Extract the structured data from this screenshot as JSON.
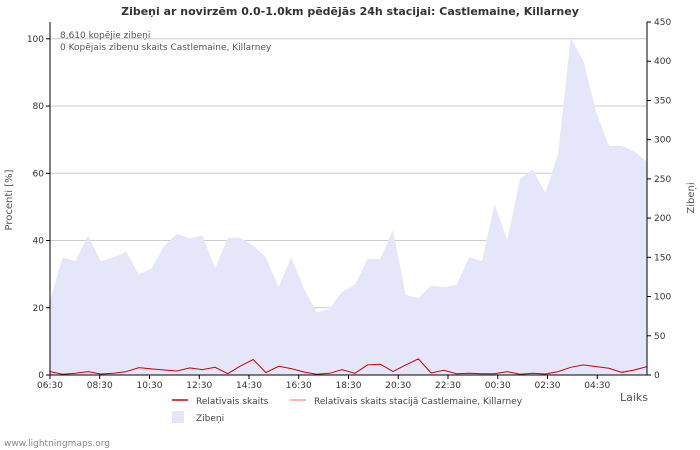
{
  "chart_data": {
    "type": "area",
    "title": "Zibeņi ar novirzēm 0.0-1.0km pēdējās 24h stacijai: Castlemaine, Killarney",
    "xlabel": "Laiks",
    "ylabel_left": "Procenti  [%]",
    "ylabel_right": "Zibeņi",
    "ylim_left": [
      0,
      105
    ],
    "ylim_right": [
      0,
      450
    ],
    "left_ticks": [
      0,
      20,
      40,
      60,
      80,
      100
    ],
    "right_ticks": [
      0,
      50,
      100,
      150,
      200,
      250,
      300,
      350,
      400,
      450
    ],
    "x_tick_labels": [
      "06:30",
      "08:30",
      "10:30",
      "12:30",
      "14:30",
      "16:30",
      "18:30",
      "20:30",
      "22:30",
      "00:30",
      "02:30",
      "04:30"
    ],
    "annotations": [
      "8,610 kopējie zibeņi",
      "0 Kopējais zibeņu skaits Castlemaine, Killarney"
    ],
    "series": [
      {
        "name": "Zibeņi",
        "axis": "right",
        "color": "#e6e6fa",
        "values": [
          95,
          150,
          145,
          178,
          145,
          150,
          157,
          128,
          136,
          165,
          180,
          174,
          178,
          136,
          175,
          175,
          165,
          150,
          112,
          150,
          110,
          80,
          84,
          106,
          115,
          148,
          148,
          185,
          102,
          98,
          114,
          112,
          115,
          150,
          145,
          218,
          172,
          250,
          262,
          232,
          282,
          430,
          400,
          335,
          292,
          292,
          285,
          272
        ]
      },
      {
        "name": "Relatīvais skaits",
        "axis": "left",
        "color": "#cc0000",
        "values": [
          1.0,
          0.2,
          0.5,
          1.0,
          0.3,
          0.5,
          1.0,
          2.2,
          1.8,
          1.5,
          1.2,
          2.1,
          1.6,
          2.3,
          0.4,
          2.7,
          4.6,
          0.7,
          2.6,
          1.9,
          0.9,
          0.2,
          0.5,
          1.6,
          0.5,
          3.0,
          3.2,
          1.0,
          3.0,
          4.8,
          0.6,
          1.4,
          0.4,
          0.5,
          0.4,
          0.4,
          1.0,
          0.2,
          0.5,
          0.3,
          1.0,
          2.3,
          3.0,
          2.5,
          2.0,
          0.8,
          1.5,
          2.5
        ]
      },
      {
        "name": "Relatīvais skaits stacijā Castlemaine, Killarney",
        "axis": "left",
        "color": "#f4a0a0",
        "values": [
          0,
          0,
          0,
          0,
          0,
          0,
          0,
          0,
          0,
          0,
          0,
          0,
          0,
          0,
          0,
          0,
          0,
          0,
          0,
          0,
          0,
          0,
          0,
          0,
          0,
          0,
          0,
          0,
          0,
          0,
          0,
          0,
          0,
          0,
          0,
          0,
          0,
          0,
          0,
          0,
          0,
          0,
          0,
          0,
          0,
          0,
          0,
          0
        ]
      }
    ],
    "legend": [
      "Relatīvais skaits",
      "Relatīvais skaits stacijā Castlemaine, Killarney",
      "Zibeņi"
    ],
    "legend_position": "bottom"
  },
  "footer": {
    "credit": "www.lightningmaps.org"
  }
}
